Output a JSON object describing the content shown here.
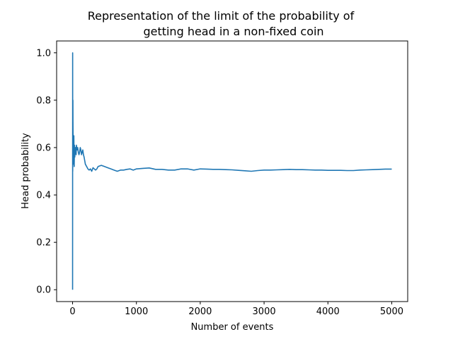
{
  "chart_data": {
    "type": "line",
    "title": "Representation of the limit of the probability of",
    "title_line2": "getting head in a non-fixed coin",
    "xlabel": "Number of events",
    "ylabel": "Head probability",
    "xlim": [
      -250,
      5250
    ],
    "ylim": [
      -0.05,
      1.05
    ],
    "xticks": [
      0,
      1000,
      2000,
      3000,
      4000,
      5000
    ],
    "xtick_labels": [
      "0",
      "1000",
      "2000",
      "3000",
      "4000",
      "5000"
    ],
    "yticks": [
      0.0,
      0.2,
      0.4,
      0.6,
      0.8,
      1.0
    ],
    "ytick_labels": [
      "0.0",
      "0.2",
      "0.4",
      "0.6",
      "0.8",
      "1.0"
    ],
    "grid": false,
    "line_color": "#1f77b4",
    "series": [
      {
        "x": [
          0,
          1,
          2,
          3,
          4,
          5,
          6,
          8,
          10,
          12,
          15,
          18,
          20,
          22,
          25,
          28,
          30,
          35,
          40,
          45,
          50,
          55,
          60,
          70,
          80,
          90,
          100,
          110,
          120,
          130,
          140,
          150,
          160,
          170,
          180,
          190,
          200,
          220,
          240,
          260,
          280,
          300,
          320,
          340,
          360,
          380,
          400,
          450,
          500,
          550,
          600,
          650,
          700,
          750,
          800,
          850,
          900,
          950,
          1000,
          1100,
          1200,
          1250,
          1300,
          1400,
          1500,
          1600,
          1700,
          1800,
          1900,
          2000,
          2100,
          2200,
          2300,
          2400,
          2500,
          2600,
          2700,
          2800,
          2900,
          3000,
          3100,
          3200,
          3300,
          3400,
          3500,
          3600,
          3700,
          3800,
          3900,
          4000,
          4100,
          4200,
          4300,
          4400,
          4500,
          4600,
          4700,
          4800,
          4900,
          5000
        ],
        "y": [
          0.0,
          1.0,
          0.5,
          0.67,
          0.75,
          0.8,
          0.71,
          0.63,
          0.6,
          0.54,
          0.53,
          0.56,
          0.65,
          0.59,
          0.52,
          0.57,
          0.61,
          0.56,
          0.6,
          0.58,
          0.6,
          0.57,
          0.61,
          0.59,
          0.6,
          0.58,
          0.57,
          0.58,
          0.6,
          0.59,
          0.57,
          0.58,
          0.59,
          0.57,
          0.56,
          0.545,
          0.53,
          0.52,
          0.51,
          0.505,
          0.51,
          0.5,
          0.515,
          0.51,
          0.505,
          0.51,
          0.52,
          0.525,
          0.52,
          0.515,
          0.51,
          0.505,
          0.5,
          0.505,
          0.505,
          0.508,
          0.51,
          0.505,
          0.51,
          0.512,
          0.514,
          0.511,
          0.508,
          0.508,
          0.505,
          0.505,
          0.51,
          0.51,
          0.505,
          0.51,
          0.509,
          0.508,
          0.508,
          0.507,
          0.506,
          0.504,
          0.502,
          0.5,
          0.503,
          0.505,
          0.505,
          0.506,
          0.507,
          0.508,
          0.507,
          0.507,
          0.506,
          0.505,
          0.505,
          0.504,
          0.504,
          0.504,
          0.503,
          0.503,
          0.505,
          0.506,
          0.507,
          0.508,
          0.509,
          0.509
        ]
      }
    ]
  }
}
